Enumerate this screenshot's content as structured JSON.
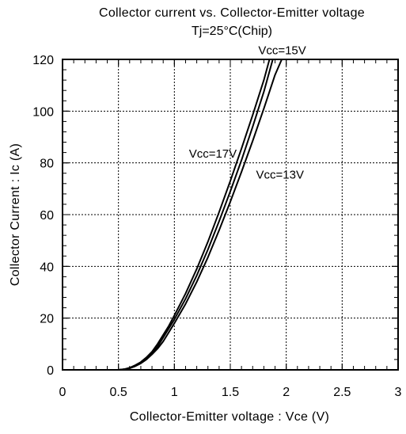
{
  "chart_data": {
    "type": "line",
    "title": "Collector current vs. Collector-Emitter voltage",
    "subtitle": "Tj=25°C(Chip)",
    "xlabel": "Collector-Emitter voltage : Vce  (V)",
    "ylabel": "Collector Current : Ic  (A)",
    "xlim": [
      0,
      3
    ],
    "ylim": [
      0,
      120
    ],
    "x_ticks": [
      0,
      0.5,
      1,
      1.5,
      2,
      2.5,
      3
    ],
    "x_tick_labels": [
      "0",
      "0.5",
      "1",
      "1.5",
      "2",
      "2.5",
      "3"
    ],
    "y_ticks": [
      0,
      20,
      40,
      60,
      80,
      100,
      120
    ],
    "y_tick_labels": [
      "0",
      "20",
      "40",
      "60",
      "80",
      "100",
      "120"
    ],
    "grid": true,
    "grid_style": "dotted",
    "minor_ticks_per_major": 5,
    "series": [
      {
        "name": "Vcc=17V",
        "x": [
          0.5,
          0.55,
          0.6,
          0.65,
          0.7,
          0.75,
          0.8,
          0.85,
          0.9,
          0.95,
          1.0,
          1.1,
          1.2,
          1.3,
          1.4,
          1.5,
          1.6,
          1.7,
          1.8,
          1.85
        ],
        "y": [
          0,
          0.2,
          0.8,
          1.8,
          3.0,
          4.8,
          7.0,
          10.0,
          13.5,
          17.0,
          21.0,
          29.5,
          39.0,
          49.5,
          61.0,
          73.0,
          85.5,
          98.5,
          112.0,
          120.0
        ]
      },
      {
        "name": "Vcc=15V",
        "x": [
          0.5,
          0.55,
          0.6,
          0.65,
          0.7,
          0.75,
          0.8,
          0.85,
          0.9,
          0.95,
          1.0,
          1.1,
          1.2,
          1.3,
          1.4,
          1.5,
          1.6,
          1.7,
          1.8,
          1.88
        ],
        "y": [
          0,
          0.2,
          0.7,
          1.6,
          2.8,
          4.3,
          6.5,
          9.0,
          12.5,
          16.0,
          19.5,
          27.5,
          36.5,
          46.5,
          57.5,
          69.0,
          81.0,
          94.0,
          107.5,
          120.0
        ]
      },
      {
        "name": "Vcc=13V",
        "x": [
          0.5,
          0.55,
          0.6,
          0.65,
          0.7,
          0.75,
          0.8,
          0.85,
          0.9,
          0.95,
          1.0,
          1.1,
          1.2,
          1.3,
          1.4,
          1.5,
          1.6,
          1.7,
          1.8,
          1.9,
          1.96
        ],
        "y": [
          0,
          0.2,
          0.6,
          1.4,
          2.5,
          4.0,
          6.0,
          8.2,
          11.0,
          14.5,
          18.0,
          25.5,
          34.0,
          43.5,
          54.0,
          65.0,
          76.5,
          88.5,
          101.0,
          114.0,
          120.0
        ]
      }
    ],
    "annotations": [
      {
        "text": "Vcc=15V",
        "x": 1.75,
        "y": 122
      },
      {
        "text": "Vcc=17V",
        "x": 1.13,
        "y": 82
      },
      {
        "text": "Vcc=13V",
        "x": 1.73,
        "y": 74
      }
    ],
    "colors": {
      "line": "#000000",
      "grid": "#000000",
      "background": "#ffffff"
    }
  }
}
